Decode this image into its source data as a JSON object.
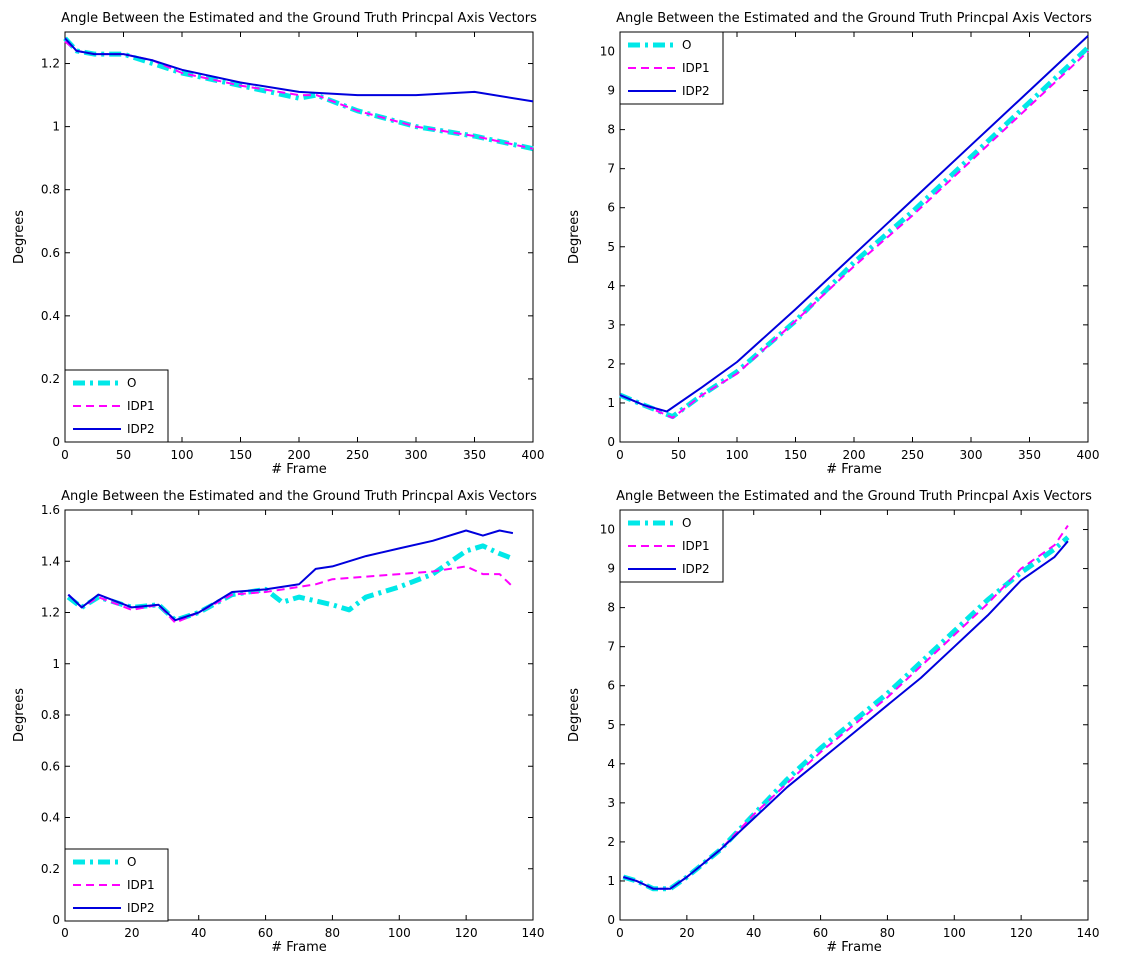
{
  "colors": {
    "O": "#00e8e8",
    "IDP1": "#ff00ff",
    "IDP2": "#0000dd"
  },
  "chart_data": [
    {
      "type": "line",
      "title": "Angle Between the Estimated and the Ground Truth Princpal Axis Vectors",
      "xlabel": "# Frame",
      "ylabel": "Degrees",
      "xlim": [
        0,
        400
      ],
      "ylim": [
        0,
        1.3
      ],
      "xticks": [
        0,
        50,
        100,
        150,
        200,
        250,
        300,
        350,
        400
      ],
      "yticks": [
        0,
        0.2,
        0.4,
        0.6,
        0.8,
        1,
        1.2
      ],
      "legend": "bottom-left",
      "grid": false,
      "series": [
        {
          "name": "O",
          "x": [
            0,
            10,
            25,
            50,
            75,
            100,
            150,
            200,
            215,
            250,
            300,
            350,
            400
          ],
          "y": [
            1.28,
            1.24,
            1.23,
            1.23,
            1.2,
            1.17,
            1.13,
            1.09,
            1.1,
            1.05,
            1.0,
            0.97,
            0.93
          ]
        },
        {
          "name": "IDP1",
          "x": [
            0,
            10,
            25,
            50,
            75,
            100,
            150,
            200,
            215,
            250,
            300,
            350,
            400
          ],
          "y": [
            1.27,
            1.24,
            1.23,
            1.23,
            1.21,
            1.17,
            1.13,
            1.1,
            1.1,
            1.05,
            1.0,
            0.97,
            0.93
          ]
        },
        {
          "name": "IDP2",
          "x": [
            0,
            10,
            25,
            50,
            75,
            100,
            150,
            200,
            250,
            300,
            350,
            400
          ],
          "y": [
            1.28,
            1.24,
            1.23,
            1.23,
            1.21,
            1.18,
            1.14,
            1.11,
            1.1,
            1.1,
            1.11,
            1.08
          ]
        }
      ]
    },
    {
      "type": "line",
      "title": "Angle Between the Estimated and the Ground Truth Princpal Axis Vectors",
      "xlabel": "# Frame",
      "ylabel": "Degrees",
      "xlim": [
        0,
        400
      ],
      "ylim": [
        0,
        10.5
      ],
      "xticks": [
        0,
        50,
        100,
        150,
        200,
        250,
        300,
        350,
        400
      ],
      "yticks": [
        0,
        1,
        2,
        3,
        4,
        5,
        6,
        7,
        8,
        9,
        10
      ],
      "legend": "top-left",
      "grid": false,
      "series": [
        {
          "name": "O",
          "x": [
            0,
            20,
            45,
            70,
            100,
            150,
            200,
            250,
            300,
            350,
            400
          ],
          "y": [
            1.2,
            0.95,
            0.65,
            1.2,
            1.8,
            3.1,
            4.6,
            5.9,
            7.3,
            8.7,
            10.1
          ]
        },
        {
          "name": "IDP1",
          "x": [
            0,
            20,
            45,
            70,
            100,
            150,
            200,
            250,
            300,
            350,
            400
          ],
          "y": [
            1.2,
            0.95,
            0.62,
            1.2,
            1.75,
            3.1,
            4.5,
            5.8,
            7.2,
            8.6,
            10.0
          ]
        },
        {
          "name": "IDP2",
          "x": [
            0,
            20,
            40,
            70,
            100,
            150,
            200,
            250,
            300,
            350,
            400
          ],
          "y": [
            1.2,
            0.95,
            0.78,
            1.4,
            2.05,
            3.4,
            4.8,
            6.2,
            7.6,
            9.0,
            10.4
          ]
        }
      ]
    },
    {
      "type": "line",
      "title": "Angle Between the Estimated and the Ground Truth Princpal Axis Vectors",
      "xlabel": "# Frame",
      "ylabel": "Degrees",
      "xlim": [
        0,
        140
      ],
      "ylim": [
        0,
        1.6
      ],
      "xticks": [
        0,
        20,
        40,
        60,
        80,
        100,
        120,
        140
      ],
      "yticks": [
        0,
        0.2,
        0.4,
        0.6,
        0.8,
        1,
        1.2,
        1.4,
        1.6
      ],
      "legend": "bottom-left",
      "grid": false,
      "series": [
        {
          "name": "O",
          "x": [
            1,
            5,
            10,
            20,
            28,
            33,
            40,
            50,
            60,
            65,
            70,
            80,
            85,
            90,
            100,
            110,
            120,
            125,
            130,
            134
          ],
          "y": [
            1.26,
            1.22,
            1.26,
            1.22,
            1.23,
            1.17,
            1.2,
            1.27,
            1.29,
            1.24,
            1.26,
            1.23,
            1.21,
            1.26,
            1.3,
            1.35,
            1.44,
            1.46,
            1.43,
            1.41
          ]
        },
        {
          "name": "IDP1",
          "x": [
            1,
            5,
            10,
            20,
            28,
            33,
            40,
            50,
            60,
            70,
            75,
            80,
            90,
            100,
            110,
            120,
            125,
            130,
            134
          ],
          "y": [
            1.27,
            1.22,
            1.26,
            1.21,
            1.23,
            1.16,
            1.2,
            1.27,
            1.28,
            1.3,
            1.31,
            1.33,
            1.34,
            1.35,
            1.36,
            1.38,
            1.35,
            1.35,
            1.3
          ]
        },
        {
          "name": "IDP2",
          "x": [
            1,
            5,
            10,
            20,
            28,
            33,
            40,
            50,
            60,
            70,
            75,
            80,
            90,
            100,
            110,
            120,
            125,
            130,
            134
          ],
          "y": [
            1.27,
            1.22,
            1.27,
            1.22,
            1.23,
            1.17,
            1.2,
            1.28,
            1.29,
            1.31,
            1.37,
            1.38,
            1.42,
            1.45,
            1.48,
            1.52,
            1.5,
            1.52,
            1.51
          ]
        }
      ]
    },
    {
      "type": "line",
      "title": "Angle Between the Estimated and the Ground Truth Princpal Axis Vectors",
      "xlabel": "# Frame",
      "ylabel": "Degrees",
      "xlim": [
        0,
        140
      ],
      "ylim": [
        0,
        10.5
      ],
      "xticks": [
        0,
        20,
        40,
        60,
        80,
        100,
        120,
        140
      ],
      "yticks": [
        0,
        1,
        2,
        3,
        4,
        5,
        6,
        7,
        8,
        9,
        10
      ],
      "legend": "top-left",
      "grid": false,
      "series": [
        {
          "name": "O",
          "x": [
            1,
            5,
            10,
            15,
            20,
            30,
            40,
            50,
            60,
            70,
            80,
            90,
            100,
            110,
            120,
            130,
            134
          ],
          "y": [
            1.1,
            1.0,
            0.8,
            0.8,
            1.1,
            1.8,
            2.7,
            3.6,
            4.4,
            5.1,
            5.8,
            6.6,
            7.4,
            8.2,
            8.9,
            9.5,
            9.8
          ]
        },
        {
          "name": "IDP1",
          "x": [
            1,
            5,
            10,
            15,
            20,
            30,
            40,
            50,
            60,
            70,
            80,
            90,
            100,
            110,
            120,
            130,
            134
          ],
          "y": [
            1.1,
            1.0,
            0.8,
            0.8,
            1.1,
            1.8,
            2.7,
            3.5,
            4.3,
            5.0,
            5.7,
            6.5,
            7.3,
            8.1,
            9.0,
            9.6,
            10.1
          ]
        },
        {
          "name": "IDP2",
          "x": [
            1,
            5,
            10,
            15,
            20,
            30,
            40,
            50,
            60,
            70,
            80,
            90,
            100,
            110,
            120,
            130,
            134
          ],
          "y": [
            1.1,
            1.0,
            0.8,
            0.8,
            1.1,
            1.8,
            2.6,
            3.4,
            4.1,
            4.8,
            5.5,
            6.2,
            7.0,
            7.8,
            8.7,
            9.3,
            9.7
          ]
        }
      ]
    }
  ]
}
